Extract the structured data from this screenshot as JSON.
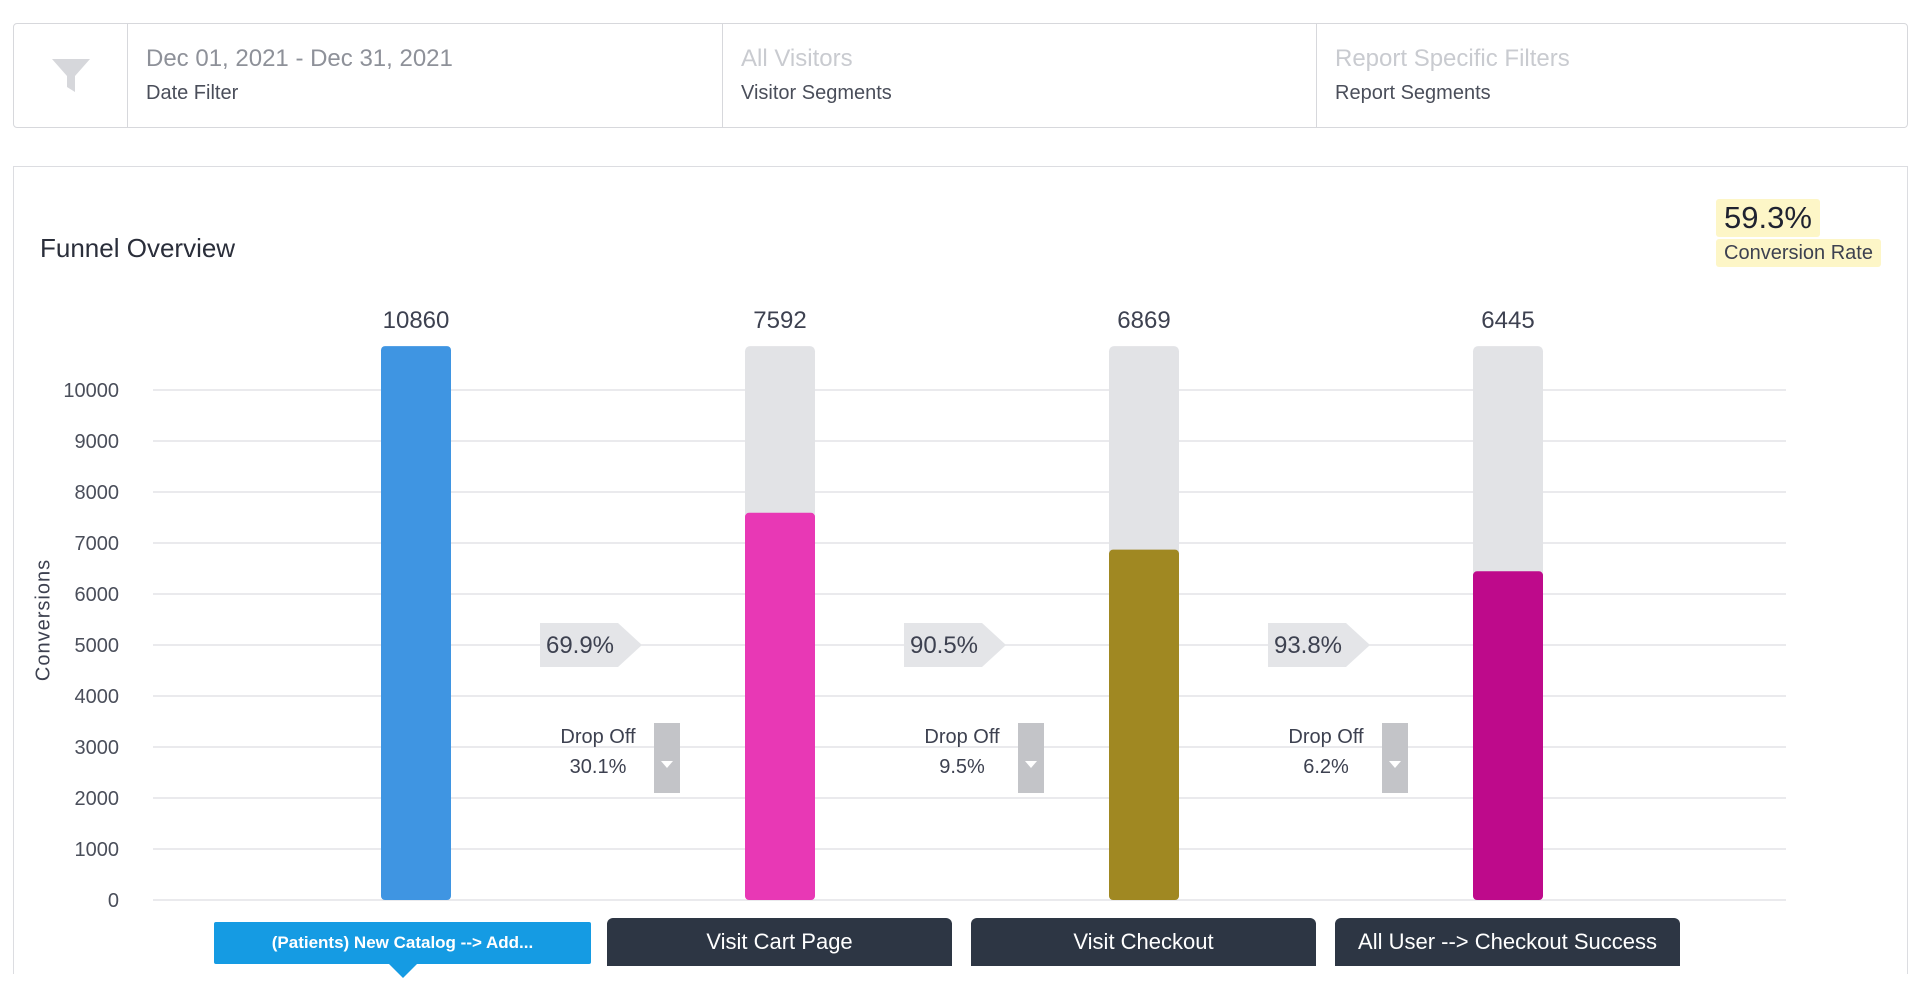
{
  "filters": [
    {
      "value": "Dec 01, 2021 - Dec 31, 2021",
      "label": "Date Filter",
      "muted": false
    },
    {
      "value": "All Visitors",
      "label": "Visitor Segments",
      "muted": true
    },
    {
      "value": "Report Specific Filters",
      "label": "Report Segments",
      "muted": true
    }
  ],
  "filter_icon": "funnel-icon",
  "panel": {
    "title": "Funnel Overview",
    "conversion_rate_value": "59.3%",
    "conversion_rate_label": "Conversion Rate"
  },
  "steps": [
    {
      "label": "(Patients) New Catalog --> Add...",
      "active": true
    },
    {
      "label": "Visit Cart Page",
      "active": false
    },
    {
      "label": "Visit Checkout",
      "active": false
    },
    {
      "label": "All User --> Checkout Success",
      "active": false
    }
  ],
  "chart_data": {
    "type": "bar",
    "categories": [
      "(Patients) New Catalog --> Add...",
      "Visit Cart Page",
      "Visit Checkout",
      "All User --> Checkout Success"
    ],
    "values": [
      10860,
      7592,
      6869,
      6445
    ],
    "value_labels": [
      "10860",
      "7592",
      "6869",
      "6445"
    ],
    "bar_colors": [
      "#3f95e2",
      "#e838b5",
      "#a08822",
      "#be0a8b"
    ],
    "background_bar_color": "#e2e3e6",
    "ylabel": "Conversions",
    "ylim": [
      0,
      10000
    ],
    "yticks": [
      "0",
      "1000",
      "2000",
      "3000",
      "4000",
      "5000",
      "6000",
      "7000",
      "8000",
      "9000",
      "10000"
    ],
    "grid": true,
    "conversion_rates": [
      "69.9%",
      "90.5%",
      "93.8%"
    ],
    "drop_off_label": "Drop Off",
    "drop_offs": [
      "30.1%",
      "9.5%",
      "6.2%"
    ]
  }
}
